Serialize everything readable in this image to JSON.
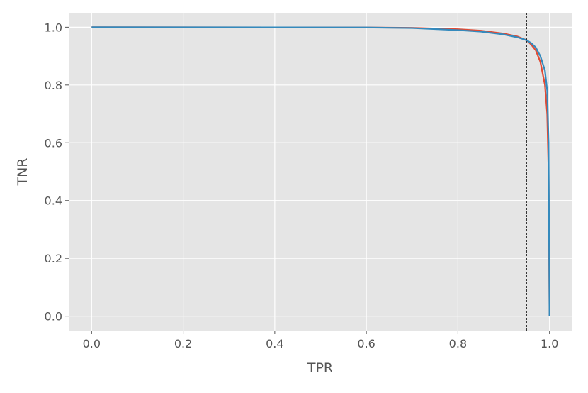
{
  "chart_data": {
    "type": "line",
    "x_label": "TPR",
    "y_label": "TNR",
    "xlim": [
      -0.05,
      1.05
    ],
    "ylim": [
      -0.05,
      1.05
    ],
    "xticks": [
      {
        "value": 0,
        "label": "0.0"
      },
      0.2,
      0.4,
      0.6,
      0.8,
      {
        "value": 1,
        "label": "1.0"
      }
    ],
    "yticks": [
      {
        "value": 0,
        "label": "0.0"
      },
      0.2,
      0.4,
      0.6,
      0.8,
      {
        "value": 1,
        "label": "1.0"
      }
    ],
    "grid": true,
    "vline": 0.95,
    "series": [
      {
        "color": "#E24A33",
        "x": [
          0,
          0.6,
          0.7,
          0.8,
          0.85,
          0.9,
          0.93,
          0.95,
          0.96,
          0.97,
          0.98,
          0.99,
          0.995,
          0.998,
          1.0
        ],
        "values": [
          1,
          0.999,
          0.998,
          0.993,
          0.988,
          0.978,
          0.968,
          0.955,
          0.94,
          0.92,
          0.88,
          0.8,
          0.7,
          0.5,
          0
        ]
      },
      {
        "color": "#348ABD",
        "x": [
          0,
          0.6,
          0.7,
          0.8,
          0.85,
          0.9,
          0.93,
          0.95,
          0.96,
          0.97,
          0.98,
          0.99,
          0.995,
          0.998,
          0.999,
          1.0
        ],
        "values": [
          1,
          0.999,
          0.997,
          0.99,
          0.985,
          0.975,
          0.965,
          0.955,
          0.945,
          0.93,
          0.9,
          0.85,
          0.78,
          0.6,
          0.3,
          0
        ]
      }
    ]
  }
}
